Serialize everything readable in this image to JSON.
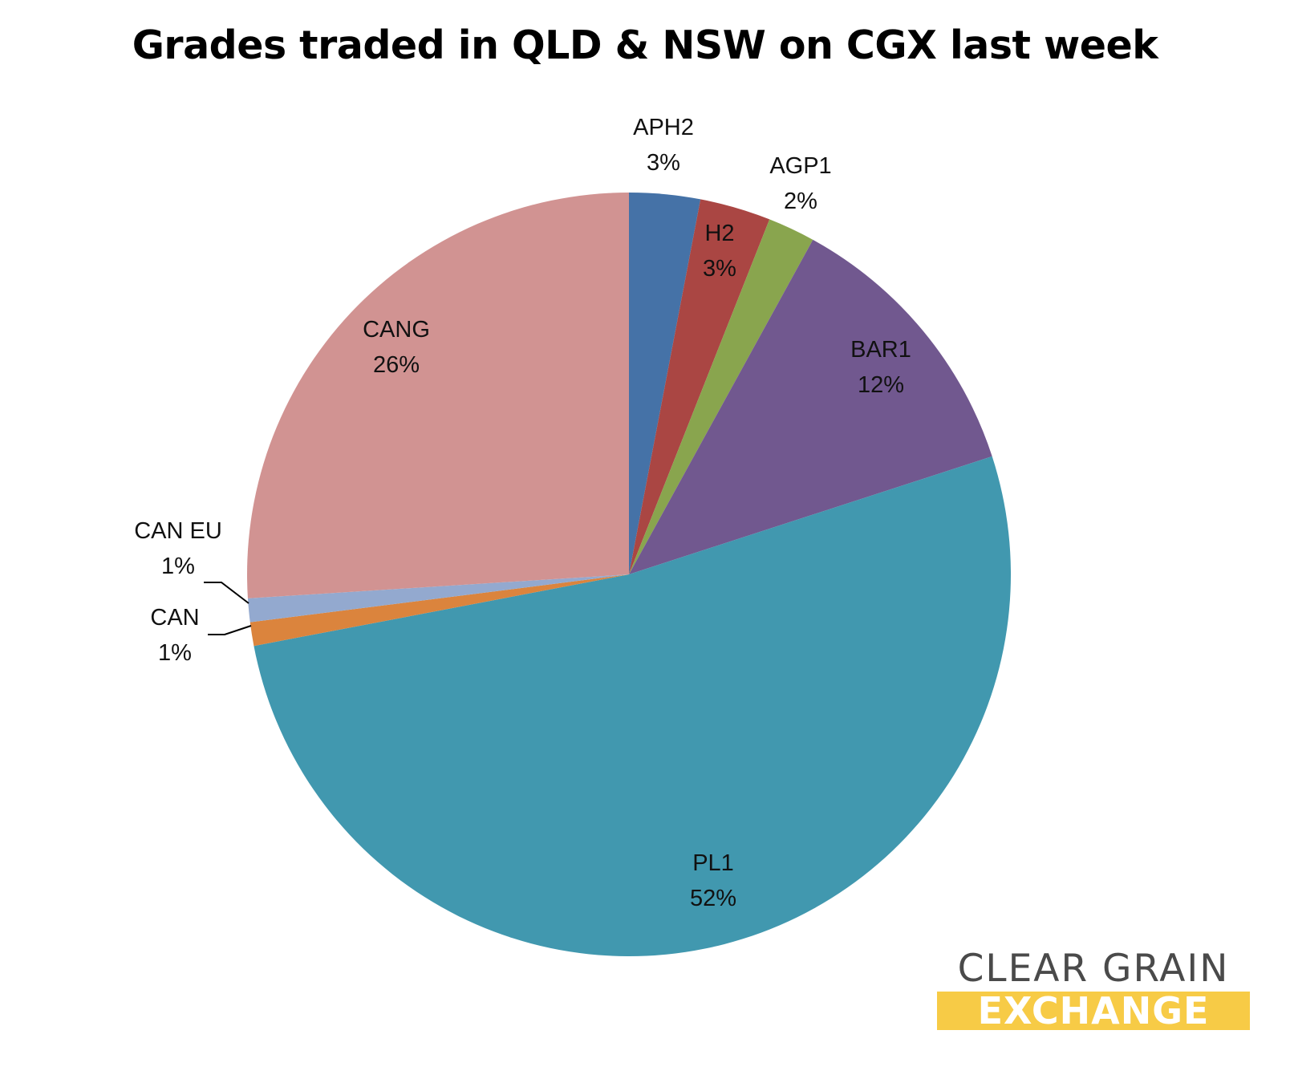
{
  "chart_data": {
    "type": "pie",
    "title": "Grades traded in QLD & NSW on CGX last week",
    "start_angle_deg": 0,
    "direction": "clockwise",
    "slices": [
      {
        "name": "APH2",
        "value": 3,
        "label": "3%",
        "color": "#4572a7"
      },
      {
        "name": "H2",
        "value": 3,
        "label": "3%",
        "color": "#aa4643"
      },
      {
        "name": "AGP1",
        "value": 2,
        "label": "2%",
        "color": "#89a54e"
      },
      {
        "name": "BAR1",
        "value": 12,
        "label": "12%",
        "color": "#71588f"
      },
      {
        "name": "PL1",
        "value": 52,
        "label": "52%",
        "color": "#4198af"
      },
      {
        "name": "CAN",
        "value": 1,
        "label": "1%",
        "color": "#db843d"
      },
      {
        "name": "CAN EU",
        "value": 1,
        "label": "1%",
        "color": "#93a9cf"
      },
      {
        "name": "CANG",
        "value": 26,
        "label": "26%",
        "color": "#d19392"
      }
    ]
  },
  "logo": {
    "line1": "CLEAR GRAIN",
    "line2": "EXCHANGE"
  }
}
